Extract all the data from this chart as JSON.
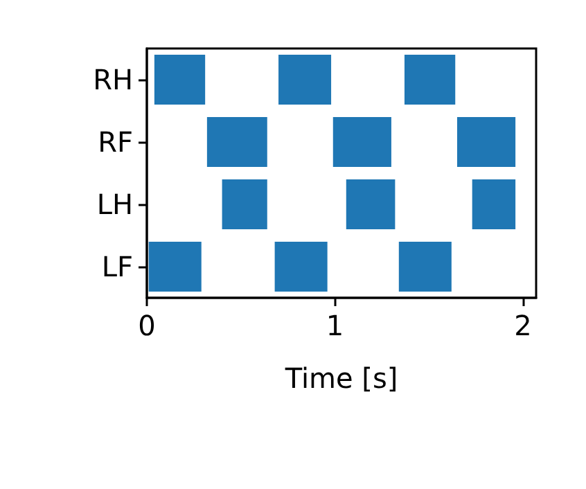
{
  "chart_data": {
    "type": "bar",
    "orientation": "horizontal",
    "xlabel": "Time [s]",
    "categories": [
      "RH",
      "RF",
      "LH",
      "LF"
    ],
    "series": [
      {
        "color": "#1f77b4",
        "base": [
          0.04,
          0.32,
          0.4,
          0.01
        ],
        "values": [
          0.27,
          0.32,
          0.24,
          0.28
        ]
      },
      {
        "color": "#1f77b4",
        "base": [
          0.7,
          0.99,
          1.06,
          0.68
        ],
        "values": [
          0.28,
          0.31,
          0.26,
          0.28
        ]
      },
      {
        "color": "#1f77b4",
        "base": [
          1.37,
          1.65,
          1.73,
          1.34
        ],
        "values": [
          0.27,
          0.31,
          0.23,
          0.28
        ]
      }
    ],
    "xlim": [
      0,
      2.07
    ],
    "xticks": [
      0,
      1,
      2
    ]
  }
}
